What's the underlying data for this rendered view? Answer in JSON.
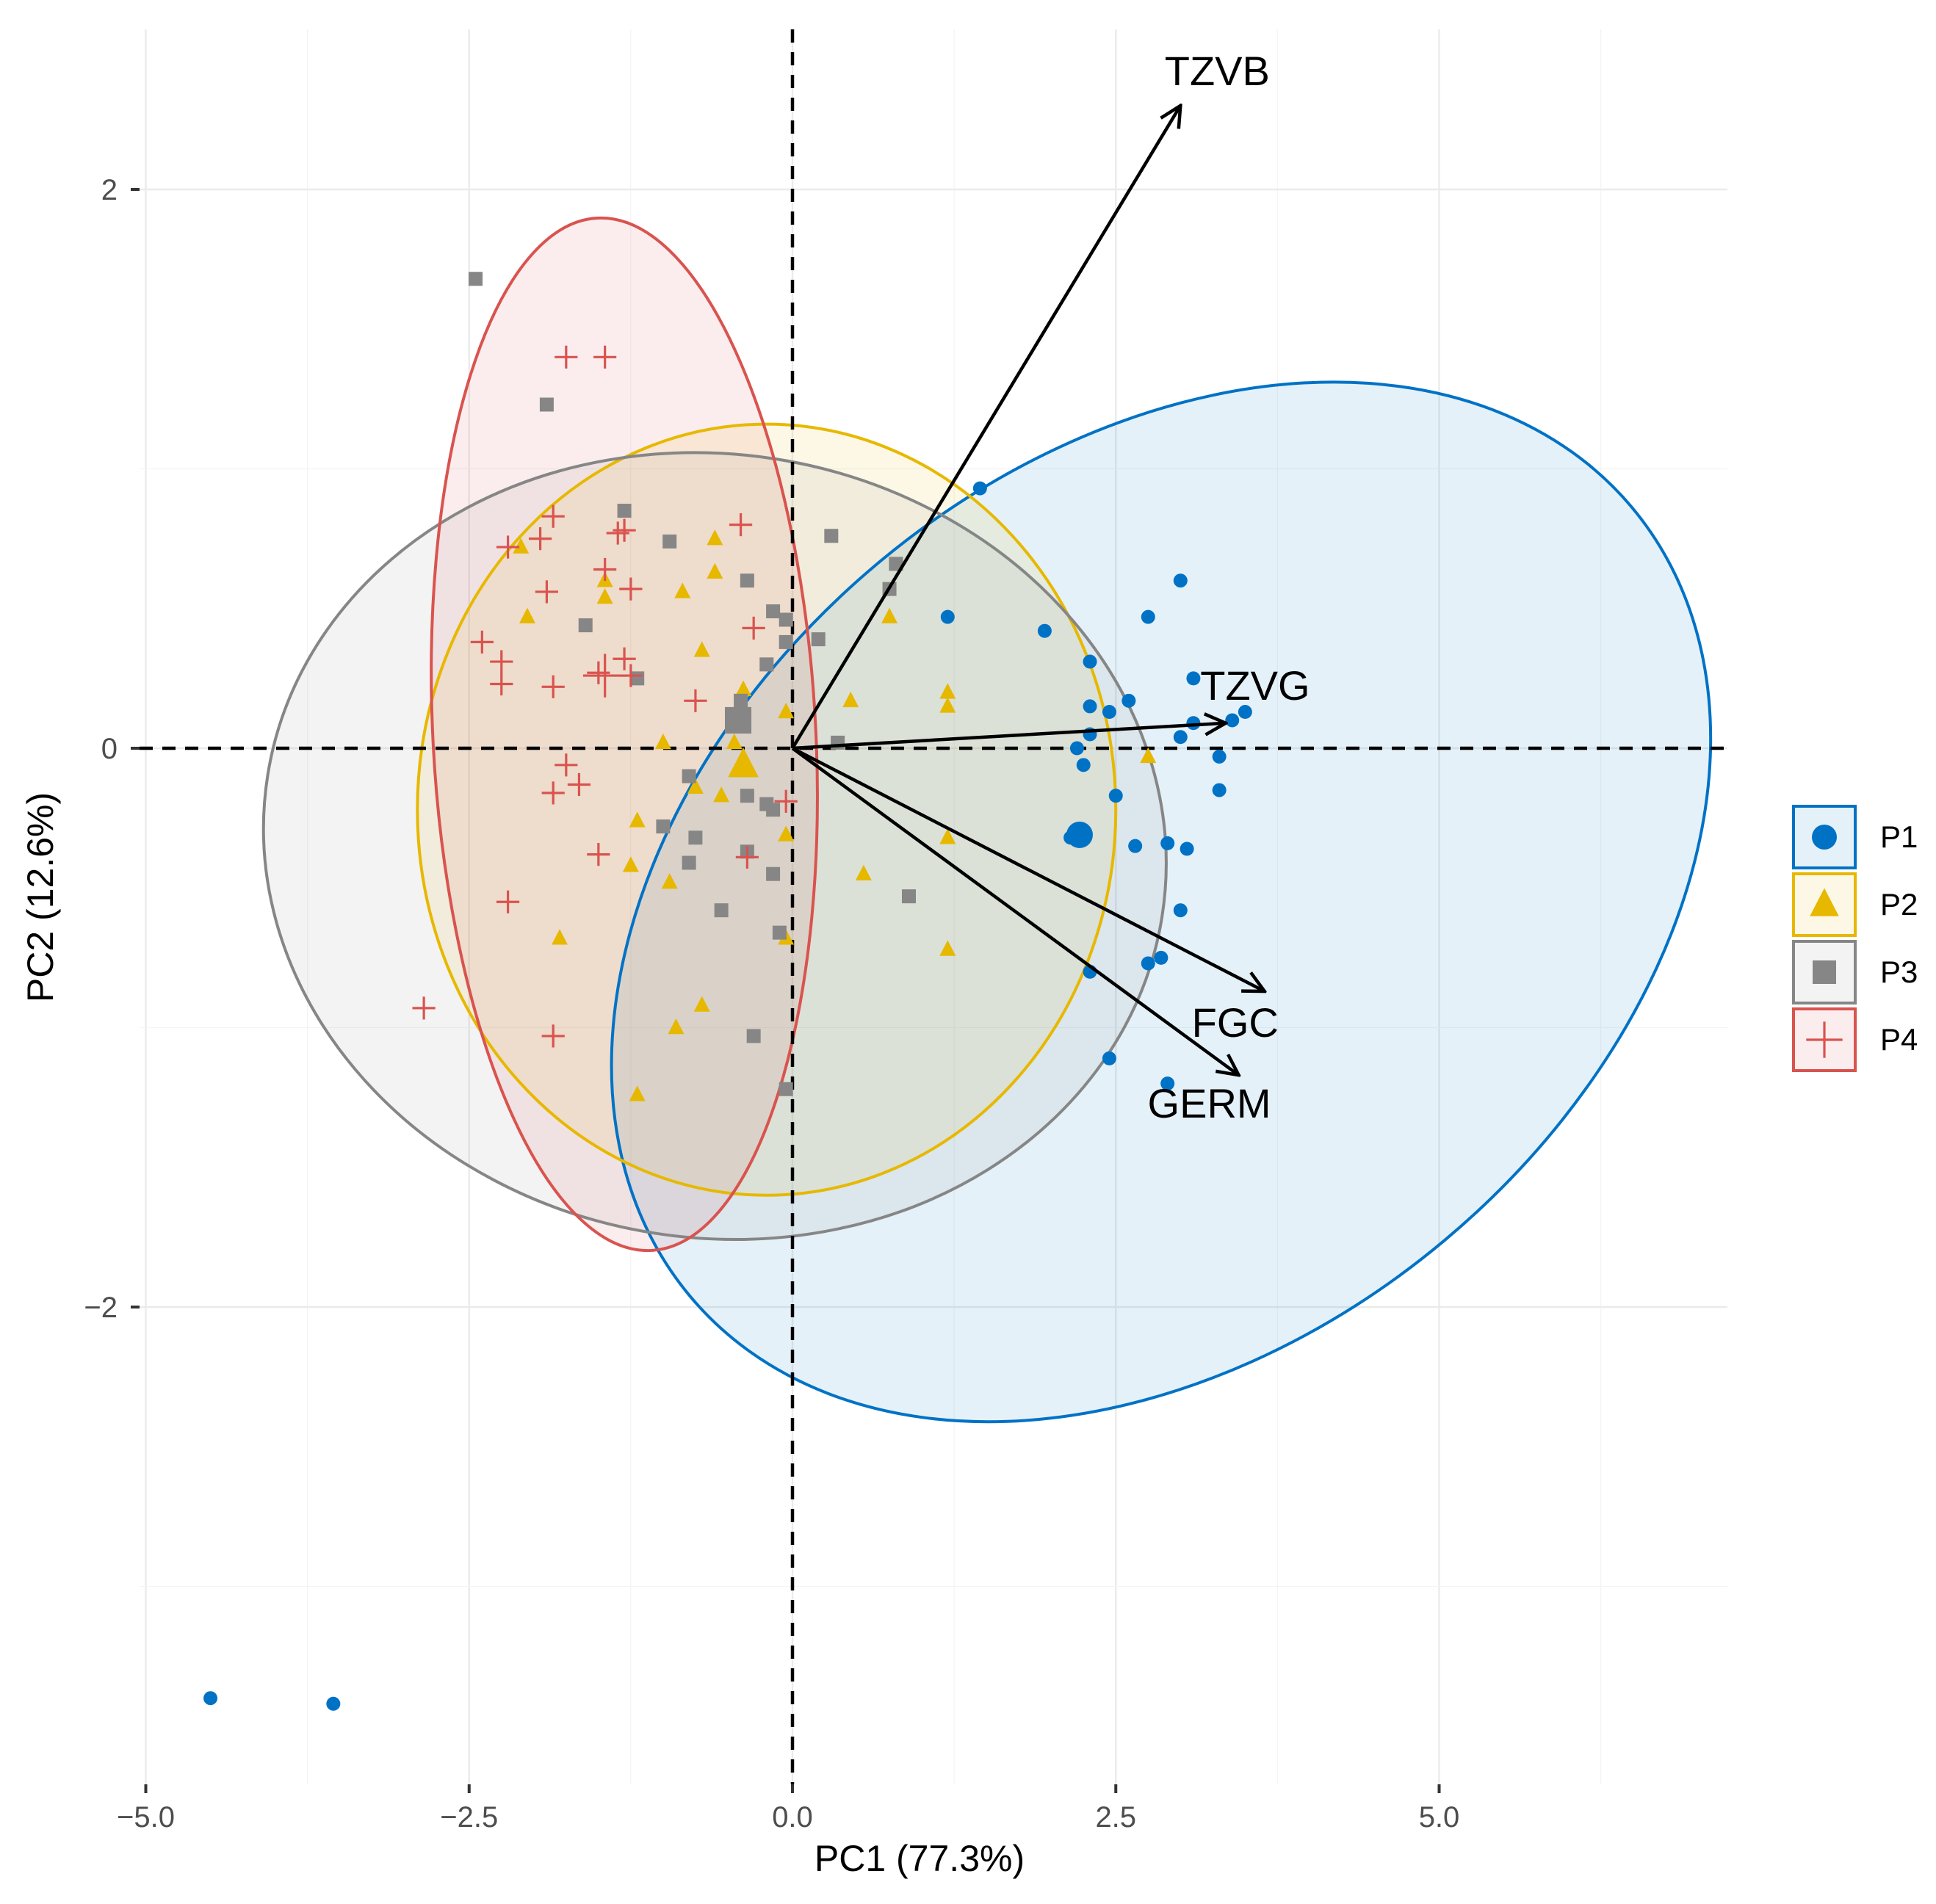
{
  "chart_data": {
    "type": "scatter",
    "title": "",
    "xlabel": "PC1 (77.3%)",
    "ylabel": "PC2 (12.6%)",
    "xlim": [
      -5.0,
      7.2
    ],
    "ylim": [
      -3.7,
      2.6
    ],
    "x_ticks": [
      -5.0,
      -2.5,
      0.0,
      2.5,
      5.0
    ],
    "x_tick_labels": [
      "−5.0",
      "−2.5",
      "0.0",
      "2.5",
      "5.0"
    ],
    "y_ticks": [
      -2,
      0,
      2
    ],
    "y_tick_labels": [
      "−2",
      "0",
      "2"
    ],
    "grid": true,
    "legend_position": "right",
    "reference_lines": {
      "x": 0,
      "y": 0,
      "style": "dashed"
    },
    "series": [
      {
        "name": "P1",
        "color": "#0072C6",
        "marker": "circle",
        "ellipse": {
          "cx": 2.85,
          "cy": -0.55,
          "a": 4.75,
          "b": 1.58,
          "angle_deg": 40
        },
        "centroid": [
          2.22,
          -0.31
        ],
        "points": [
          [
            -4.5,
            -3.4
          ],
          [
            -3.55,
            -3.42
          ],
          [
            1.45,
            0.93
          ],
          [
            1.2,
            0.47
          ],
          [
            1.95,
            0.42
          ],
          [
            2.3,
            0.31
          ],
          [
            2.3,
            0.15
          ],
          [
            2.45,
            0.13
          ],
          [
            2.6,
            0.17
          ],
          [
            2.3,
            0.05
          ],
          [
            2.2,
            0.0
          ],
          [
            2.25,
            -0.06
          ],
          [
            2.5,
            -0.17
          ],
          [
            2.75,
            0.47
          ],
          [
            3.0,
            0.6
          ],
          [
            3.1,
            0.25
          ],
          [
            3.1,
            0.09
          ],
          [
            3.0,
            0.04
          ],
          [
            3.4,
            0.1
          ],
          [
            3.5,
            0.13
          ],
          [
            3.3,
            -0.03
          ],
          [
            3.3,
            -0.15
          ],
          [
            2.15,
            -0.32
          ],
          [
            2.65,
            -0.35
          ],
          [
            2.9,
            -0.34
          ],
          [
            3.05,
            -0.36
          ],
          [
            3.0,
            -0.58
          ],
          [
            2.75,
            -0.77
          ],
          [
            2.85,
            -0.75
          ],
          [
            2.3,
            -0.8
          ],
          [
            2.45,
            -1.11
          ],
          [
            2.9,
            -1.2
          ]
        ]
      },
      {
        "name": "P2",
        "color": "#E7B800",
        "marker": "triangle",
        "ellipse": {
          "cx": -0.2,
          "cy": -0.22,
          "a": 2.7,
          "b": 1.38,
          "angle_deg": 0
        },
        "centroid": [
          -0.38,
          -0.06
        ],
        "points": [
          [
            -2.1,
            0.72
          ],
          [
            -2.05,
            0.47
          ],
          [
            -1.45,
            0.6
          ],
          [
            -1.45,
            0.54
          ],
          [
            -0.85,
            0.56
          ],
          [
            -0.6,
            0.63
          ],
          [
            -0.6,
            0.75
          ],
          [
            -0.7,
            0.35
          ],
          [
            -0.38,
            0.21
          ],
          [
            -0.05,
            0.13
          ],
          [
            0.45,
            0.17
          ],
          [
            0.75,
            0.47
          ],
          [
            1.2,
            0.2
          ],
          [
            1.2,
            0.15
          ],
          [
            2.75,
            -0.03
          ],
          [
            -1.0,
            0.02
          ],
          [
            -0.45,
            0.02
          ],
          [
            -0.75,
            -0.14
          ],
          [
            -0.55,
            -0.17
          ],
          [
            -1.2,
            -0.26
          ],
          [
            -1.25,
            -0.42
          ],
          [
            -0.95,
            -0.48
          ],
          [
            -0.05,
            -0.31
          ],
          [
            0.55,
            -0.45
          ],
          [
            1.2,
            -0.32
          ],
          [
            1.2,
            -0.72
          ],
          [
            -1.8,
            -0.68
          ],
          [
            -0.7,
            -0.92
          ],
          [
            -0.9,
            -1.0
          ],
          [
            -1.2,
            -1.24
          ],
          [
            -0.05,
            -0.68
          ]
        ]
      },
      {
        "name": "P3",
        "color": "#868686",
        "marker": "square",
        "ellipse": {
          "cx": -0.6,
          "cy": -0.35,
          "a": 3.03,
          "b": 1.62,
          "angle_deg": 81
        },
        "centroid": [
          -0.42,
          0.1
        ],
        "points": [
          [
            -2.45,
            1.68
          ],
          [
            -1.9,
            1.23
          ],
          [
            -1.3,
            0.85
          ],
          [
            -0.95,
            0.74
          ],
          [
            -0.35,
            0.6
          ],
          [
            -0.15,
            0.49
          ],
          [
            -0.05,
            0.46
          ],
          [
            0.3,
            0.76
          ],
          [
            0.8,
            0.66
          ],
          [
            0.75,
            0.57
          ],
          [
            0.2,
            0.39
          ],
          [
            -1.6,
            0.44
          ],
          [
            -1.2,
            0.25
          ],
          [
            -0.2,
            0.3
          ],
          [
            -0.05,
            0.38
          ],
          [
            -0.4,
            0.17
          ],
          [
            0.35,
            0.02
          ],
          [
            -0.8,
            -0.1
          ],
          [
            -1.0,
            -0.28
          ],
          [
            -0.75,
            -0.32
          ],
          [
            -0.35,
            -0.17
          ],
          [
            -0.2,
            -0.2
          ],
          [
            -0.15,
            -0.22
          ],
          [
            -0.35,
            -0.37
          ],
          [
            -0.8,
            -0.41
          ],
          [
            -0.15,
            -0.45
          ],
          [
            -0.55,
            -0.58
          ],
          [
            0.9,
            -0.53
          ],
          [
            -0.1,
            -0.66
          ],
          [
            -0.3,
            -1.03
          ],
          [
            -0.05,
            -1.22
          ]
        ]
      },
      {
        "name": "P4",
        "color": "#D9534F",
        "marker": "plus",
        "ellipse": {
          "cx": -1.3,
          "cy": 0.05,
          "a": 1.48,
          "b": 1.85,
          "angle_deg": 3
        },
        "centroid": [
          -1.45,
          0.26
        ],
        "points": [
          [
            -1.75,
            1.4
          ],
          [
            -1.45,
            1.4
          ],
          [
            -1.85,
            0.83
          ],
          [
            -1.95,
            0.75
          ],
          [
            -2.2,
            0.72
          ],
          [
            -1.35,
            0.77
          ],
          [
            -1.3,
            0.78
          ],
          [
            -0.4,
            0.8
          ],
          [
            -1.45,
            0.64
          ],
          [
            -1.9,
            0.56
          ],
          [
            -1.25,
            0.57
          ],
          [
            -0.3,
            0.43
          ],
          [
            -2.4,
            0.38
          ],
          [
            -2.25,
            0.31
          ],
          [
            -1.3,
            0.32
          ],
          [
            -1.5,
            0.27
          ],
          [
            -1.25,
            0.26
          ],
          [
            -2.25,
            0.23
          ],
          [
            -1.85,
            0.22
          ],
          [
            -0.75,
            0.17
          ],
          [
            -1.75,
            -0.06
          ],
          [
            -1.65,
            -0.13
          ],
          [
            -1.85,
            -0.16
          ],
          [
            -0.05,
            -0.19
          ],
          [
            -1.5,
            -0.38
          ],
          [
            -0.35,
            -0.39
          ],
          [
            -2.2,
            -0.55
          ],
          [
            -2.85,
            -0.93
          ],
          [
            -1.85,
            -1.03
          ]
        ]
      }
    ],
    "loadings": [
      {
        "name": "TZVB",
        "x": 3.0,
        "y": 2.3
      },
      {
        "name": "TZVG",
        "x": 3.35,
        "y": 0.09
      },
      {
        "name": "FGC",
        "x": 3.65,
        "y": -0.87
      },
      {
        "name": "GERM",
        "x": 3.45,
        "y": -1.17
      }
    ]
  }
}
